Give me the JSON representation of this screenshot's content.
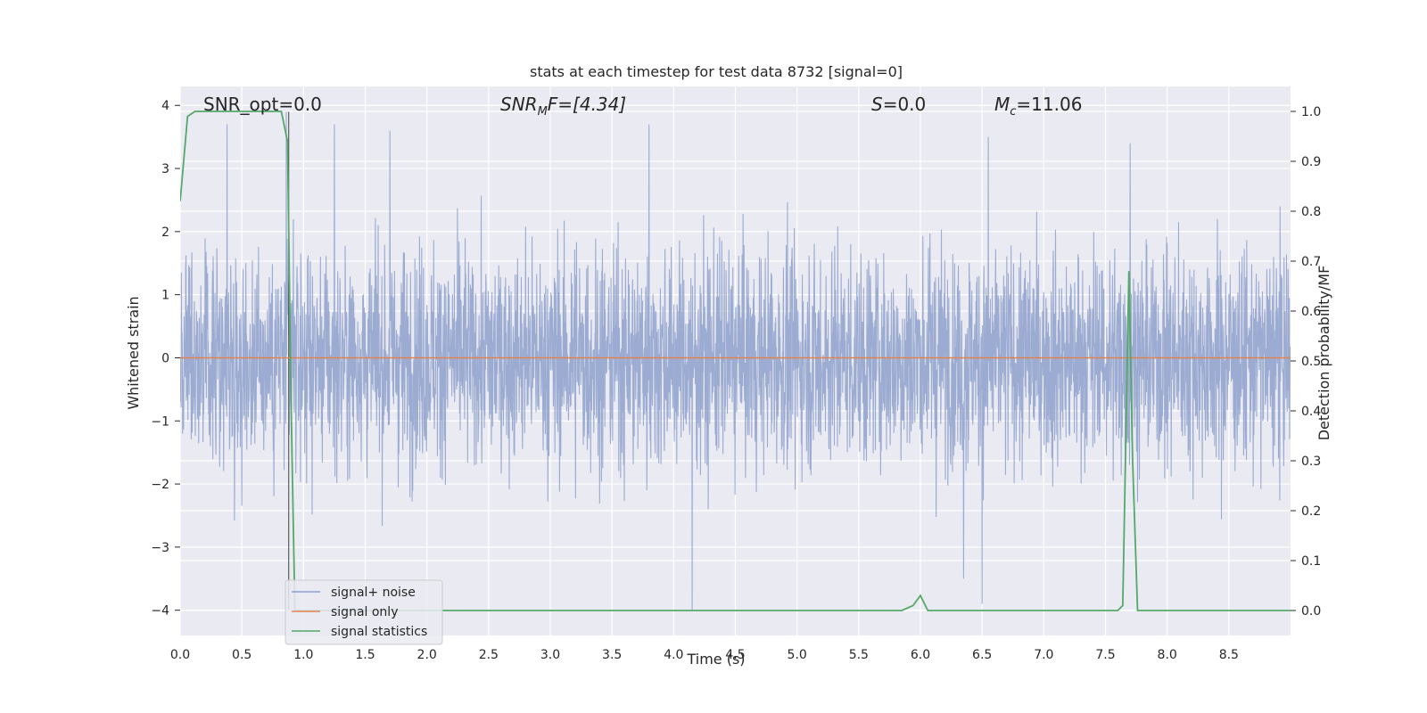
{
  "chart_data": {
    "type": "line",
    "title": "stats at each timestep for test data 8732 [signal=0]",
    "xlabel": "Time (s)",
    "ylabel_left": "Whitened strain",
    "ylabel_right": "Detection probability/MF",
    "xlim": [
      0.0,
      9.0
    ],
    "ylim_left": [
      -4.4,
      4.3
    ],
    "ylim_right": [
      -0.05,
      1.05
    ],
    "x_ticks": [
      0.0,
      0.5,
      1.0,
      1.5,
      2.0,
      2.5,
      3.0,
      3.5,
      4.0,
      4.5,
      5.0,
      5.5,
      6.0,
      6.5,
      7.0,
      7.5,
      8.0,
      8.5
    ],
    "x_tick_labels": [
      "0.0",
      "0.5",
      "1.0",
      "1.5",
      "2.0",
      "2.5",
      "3.0",
      "3.5",
      "4.0",
      "4.5",
      "5.0",
      "5.5",
      "6.0",
      "6.5",
      "7.0",
      "7.5",
      "8.0",
      "8.5"
    ],
    "y_left_ticks": [
      -4,
      -3,
      -2,
      -1,
      0,
      1,
      2,
      3,
      4
    ],
    "y_left_tick_labels": [
      "−4",
      "−3",
      "−2",
      "−1",
      "0",
      "1",
      "2",
      "3",
      "4"
    ],
    "y_right_ticks": [
      0.0,
      0.1,
      0.2,
      0.3,
      0.4,
      0.5,
      0.6,
      0.7,
      0.8,
      0.9,
      1.0
    ],
    "y_right_tick_labels": [
      "0.0",
      "0.1",
      "0.2",
      "0.3",
      "0.4",
      "0.5",
      "0.6",
      "0.7",
      "0.8",
      "0.9",
      "1.0"
    ],
    "grid": true,
    "legend_placement": "lower-left",
    "annotations": {
      "snr_opt": "SNR_opt=0.0",
      "snr_mf_base": "SNR",
      "snr_mf_sub": "M",
      "snr_mf_rest": "F=[4.34]",
      "s_italic": "S",
      "s_rest": "=0.0",
      "mc_italic": "M",
      "mc_sub": "c",
      "mc_rest": "=11.06"
    },
    "series": [
      {
        "name": "signal+ noise",
        "color": "#8da0cb",
        "axis": "left",
        "style": "dense noise, amplitude ~±2 with peaks near ±3.7",
        "peaks": [
          {
            "x": 0.38,
            "y": 3.7
          },
          {
            "x": 0.86,
            "y": 3.9
          },
          {
            "x": 1.25,
            "y": 3.7
          },
          {
            "x": 1.7,
            "y": 3.6
          },
          {
            "x": 3.8,
            "y": 3.7
          },
          {
            "x": 6.55,
            "y": 3.5
          },
          {
            "x": 7.7,
            "y": 3.4
          },
          {
            "x": 4.15,
            "y": -4.0
          },
          {
            "x": 6.5,
            "y": -3.9
          },
          {
            "x": 6.35,
            "y": -3.5
          }
        ]
      },
      {
        "name": "signal only",
        "color": "#dd8452",
        "axis": "left",
        "x": [
          0.0,
          9.0
        ],
        "y": [
          0.0,
          0.0
        ]
      },
      {
        "name": "signal statistics",
        "color": "#55a868",
        "axis": "right",
        "x": [
          0.0,
          0.06,
          0.12,
          0.2,
          0.4,
          0.6,
          0.82,
          0.87,
          0.9,
          0.93,
          0.96,
          1.0,
          2.0,
          3.0,
          4.0,
          5.0,
          5.85,
          5.94,
          6.0,
          6.06,
          6.5,
          7.0,
          7.5,
          7.6,
          7.64,
          7.69,
          7.72,
          7.76,
          7.8,
          8.0,
          8.5,
          9.0
        ],
        "y": [
          0.82,
          0.99,
          1.0,
          1.0,
          1.0,
          1.0,
          1.0,
          0.94,
          0.4,
          0.0,
          0.0,
          0.0,
          0.0,
          0.0,
          0.0,
          0.0,
          0.0,
          0.01,
          0.03,
          0.0,
          0.0,
          0.0,
          0.0,
          0.0,
          0.01,
          0.68,
          0.3,
          0.0,
          0.0,
          0.0,
          0.0,
          0.0
        ]
      }
    ]
  }
}
